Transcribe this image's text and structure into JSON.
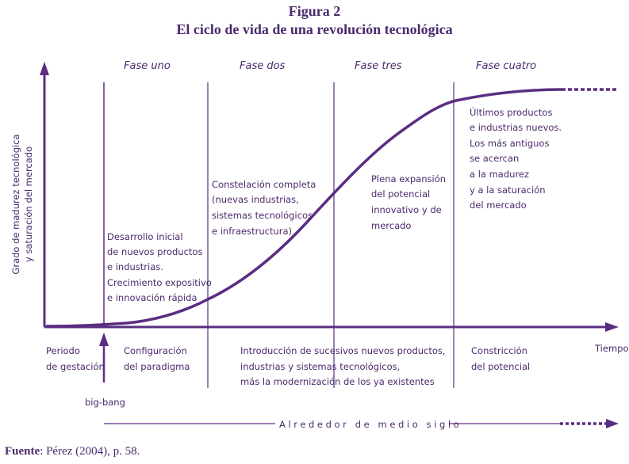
{
  "figure": {
    "number": "Figura 2",
    "title": "El ciclo de vida de una revolución tecnológica"
  },
  "axes": {
    "y_label_line1": "Grado de madurez tecnológica",
    "y_label_line2": "y saturación del mercado",
    "x_label": "Tiempo"
  },
  "phases": [
    "Fase uno",
    "Fase dos",
    "Fase tres",
    "Fase cuatro"
  ],
  "phase_notes": [
    [
      "Desarrollo inicial",
      "de nuevos productos",
      "e industrias.",
      "Crecimiento expositivo",
      "e innovación rápida"
    ],
    [
      "Constelación completa",
      "(nuevas industrias,",
      "sistemas tecnológicos",
      "e infraestructura)"
    ],
    [
      "Plena expansión",
      "del potencial",
      "innovativo y de",
      "mercado"
    ],
    [
      "Últimos productos",
      "e industrias nuevos.",
      "Los más antiguos",
      "se acercan",
      "a la madurez",
      "y a la saturación",
      "del mercado"
    ]
  ],
  "bottom_labels": {
    "gestation": [
      "Periodo",
      "de gestación"
    ],
    "configuration": [
      "Configuración",
      "del paradigma"
    ],
    "introduction": [
      "Introducción de sucesivos nuevos productos,",
      "industrias y sistemas tecnológicos,",
      "más la modernización de los ya existentes"
    ],
    "constriction": [
      "Constricción",
      "del potencial"
    ]
  },
  "big_bang": "big-bang",
  "timespan": "Alrededor de medio siglo",
  "source": {
    "label": "Fuente",
    "text": ": Pérez (2004), p. 58."
  },
  "colors": {
    "primary": "#4b2a6e",
    "curve": "#5a2d82"
  }
}
